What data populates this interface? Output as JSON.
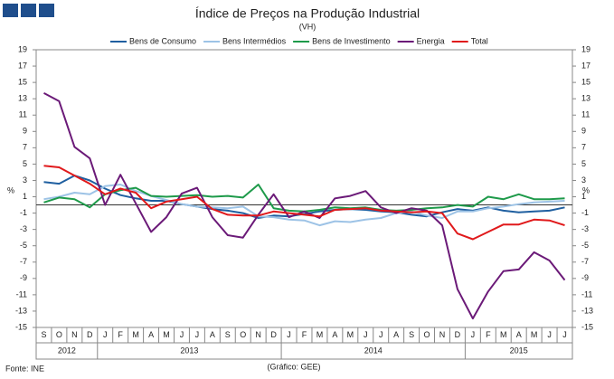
{
  "chart_data": {
    "type": "line",
    "title": "Índice de Preços na Produção Industrial",
    "subtitle": "(VH)",
    "y_label": "%",
    "y2_label": "%",
    "source": "Fonte: INE",
    "credit": "(Gráfico: GEE)",
    "categories": [
      "S",
      "O",
      "N",
      "D",
      "J",
      "F",
      "M",
      "A",
      "M",
      "J",
      "J",
      "A",
      "S",
      "O",
      "N",
      "D",
      "J",
      "F",
      "M",
      "A",
      "M",
      "J",
      "J",
      "A",
      "S",
      "O",
      "N",
      "D",
      "J",
      "F",
      "M",
      "A",
      "M",
      "J",
      "J"
    ],
    "years": [
      "2012",
      "2013",
      "2014",
      "2015"
    ],
    "ylim": [
      -15,
      19
    ],
    "yticks": [
      19,
      17,
      15,
      13,
      11,
      9,
      7,
      5,
      3,
      1,
      -1,
      -3,
      -5,
      -7,
      -9,
      -11,
      -13,
      -15
    ],
    "y2lim": [
      -15,
      19
    ],
    "y2ticks": [
      19,
      17,
      15,
      13,
      11,
      9,
      7,
      5,
      3,
      1,
      -1,
      -3,
      -5,
      -7,
      -9,
      -11,
      -13,
      -15
    ],
    "legend": "top",
    "series": [
      {
        "name": "Bens de Consumo",
        "color": "#1f5fa0",
        "values": [
          2.8,
          2.6,
          3.6,
          3.0,
          2.0,
          1.2,
          0.8,
          0.5,
          0.5,
          0.1,
          -0.2,
          -0.5,
          -0.7,
          -1.0,
          -1.6,
          -1.3,
          -1.4,
          -1.1,
          -0.8,
          -0.6,
          -0.5,
          -0.6,
          -0.8,
          -0.9,
          -1.2,
          -1.4,
          -0.9,
          -0.5,
          -0.7,
          -0.3,
          -0.7,
          -0.9,
          -0.8,
          -0.7,
          -0.3
        ]
      },
      {
        "name": "Bens Intermédios",
        "color": "#9dc3e6",
        "values": [
          0.7,
          1.0,
          1.5,
          1.3,
          2.3,
          2.5,
          1.7,
          1.1,
          0.6,
          0.1,
          -0.2,
          -0.3,
          -0.4,
          -0.2,
          -1.4,
          -1.5,
          -1.8,
          -1.9,
          -2.5,
          -2.0,
          -2.1,
          -1.8,
          -1.6,
          -1.0,
          -0.8,
          -1.3,
          -1.6,
          -0.8,
          -0.8,
          -0.4,
          -0.2,
          0.1,
          0.3,
          0.4,
          0.5
        ]
      },
      {
        "name": "Bens de Investimento",
        "color": "#1e9a4a",
        "values": [
          0.3,
          0.9,
          0.7,
          -0.3,
          1.3,
          1.8,
          2.1,
          1.1,
          1.0,
          1.1,
          1.2,
          1.0,
          1.1,
          0.9,
          2.5,
          -0.4,
          -0.7,
          -0.8,
          -0.6,
          -0.3,
          -0.4,
          -0.3,
          -0.6,
          -0.7,
          -0.6,
          -0.4,
          -0.3,
          0.0,
          -0.2,
          1.0,
          0.7,
          1.3,
          0.7,
          0.7,
          0.8
        ]
      },
      {
        "name": "Energia",
        "color": "#6b1a78",
        "values": [
          13.7,
          12.7,
          7.1,
          5.7,
          0,
          3.7,
          0.2,
          -3.3,
          -1.5,
          1.4,
          2.1,
          -1.5,
          -3.7,
          -4.0,
          -1.2,
          1.3,
          -1.5,
          -0.8,
          -1.6,
          0.8,
          1.1,
          1.7,
          -0.3,
          -1.0,
          -0.4,
          -0.7,
          -2.5,
          -10.3,
          -13.9,
          -10.6,
          -8.1,
          -7.9,
          -5.8,
          -6.8,
          -9.2
        ]
      },
      {
        "name": "Total",
        "color": "#e0191b",
        "values": [
          4.8,
          4.6,
          3.6,
          2.6,
          1.3,
          2.0,
          1.5,
          -0.4,
          0.4,
          0.7,
          1.0,
          -0.5,
          -1.2,
          -1.3,
          -1.3,
          -0.8,
          -1.0,
          -1.2,
          -1.4,
          -0.6,
          -0.5,
          -0.4,
          -0.7,
          -0.8,
          -0.9,
          -0.8,
          -1.0,
          -3.5,
          -4.2,
          -3.3,
          -2.4,
          -2.4,
          -1.8,
          -1.9,
          -2.5
        ]
      }
    ]
  }
}
